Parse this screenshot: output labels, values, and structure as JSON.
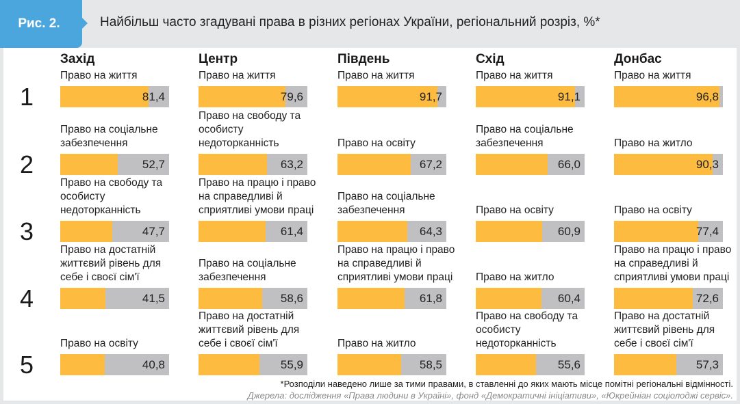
{
  "header": {
    "figure_label": "Рис. 2.",
    "title": "Найбільш часто згадувані права в різних регіонах України, регіональний розріз, %*"
  },
  "colors": {
    "bar": "#fdbb40",
    "remainder": "#c0c0c2",
    "accent": "#4aa6dd"
  },
  "chart_data": {
    "type": "bar",
    "title": "Найбільш часто згадувані права в різних регіонах України, регіональний розріз, %*",
    "ranks": [
      "1",
      "2",
      "3",
      "4",
      "5"
    ],
    "ylim": [
      0,
      100
    ],
    "regions": [
      {
        "name": "Захід",
        "items": [
          {
            "label": "Право на життя",
            "value": 81.4,
            "text": "81,4"
          },
          {
            "label": "Право на соціальне забезпечення",
            "value": 52.7,
            "text": "52,7"
          },
          {
            "label": "Право на свободу та особисту недоторканність",
            "value": 47.7,
            "text": "47,7"
          },
          {
            "label": "Право на достатній життєвий рівень для себе і своєї сім'ї",
            "value": 41.5,
            "text": "41,5"
          },
          {
            "label": "Право на освіту",
            "value": 40.8,
            "text": "40,8"
          }
        ]
      },
      {
        "name": "Центр",
        "items": [
          {
            "label": "Право на життя",
            "value": 79.6,
            "text": "79,6"
          },
          {
            "label": "Право на свободу та особисту недоторканність",
            "value": 63.2,
            "text": "63,2"
          },
          {
            "label": "Право на працю і право на справедливі й сприятливі умови праці",
            "value": 61.4,
            "text": "61,4"
          },
          {
            "label": "Право на соціальне забезпечення",
            "value": 58.6,
            "text": "58,6"
          },
          {
            "label": "Право на достатній життєвий рівень для себе і своєї сім'ї",
            "value": 55.9,
            "text": "55,9"
          }
        ]
      },
      {
        "name": "Південь",
        "items": [
          {
            "label": "Право на життя",
            "value": 91.7,
            "text": "91,7"
          },
          {
            "label": "Право на освіту",
            "value": 67.2,
            "text": "67,2"
          },
          {
            "label": "Право на соціальне забезпечення",
            "value": 64.3,
            "text": "64,3"
          },
          {
            "label": "Право на працю і право на справедливі й сприятливі умови праці",
            "value": 61.8,
            "text": "61,8"
          },
          {
            "label": "Право на житло",
            "value": 58.5,
            "text": "58,5"
          }
        ]
      },
      {
        "name": "Схід",
        "items": [
          {
            "label": "Право на життя",
            "value": 91.1,
            "text": "91,1"
          },
          {
            "label": "Право на соціальне забезпечення",
            "value": 66.0,
            "text": "66,0"
          },
          {
            "label": "Право на освіту",
            "value": 60.9,
            "text": "60,9"
          },
          {
            "label": "Право на житло",
            "value": 60.4,
            "text": "60,4"
          },
          {
            "label": "Право на свободу та особисту недоторканність",
            "value": 55.6,
            "text": "55,6"
          }
        ]
      },
      {
        "name": "Донбас",
        "items": [
          {
            "label": "Право на життя",
            "value": 96.8,
            "text": "96,8"
          },
          {
            "label": "Право на житло",
            "value": 90.3,
            "text": "90,3"
          },
          {
            "label": "Право на освіту",
            "value": 77.4,
            "text": "77,4"
          },
          {
            "label": "Право на працю і право на справедливі й сприятливі умови праці",
            "value": 72.6,
            "text": "72,6"
          },
          {
            "label": "Право на достатній життєвий рівень для себе і своєї сім'ї",
            "value": 57.3,
            "text": "57,3"
          }
        ]
      }
    ]
  },
  "footer": {
    "note": "*Розподіли наведено лише за тими правами, в ставленні до яких мають місце помітні регіональні відмінності.",
    "source": "Джерела: дослідження «Права людини в Україні», фонд «Демократичні ініціативи», «Юкрейніан соціолоджі сервіс»."
  }
}
